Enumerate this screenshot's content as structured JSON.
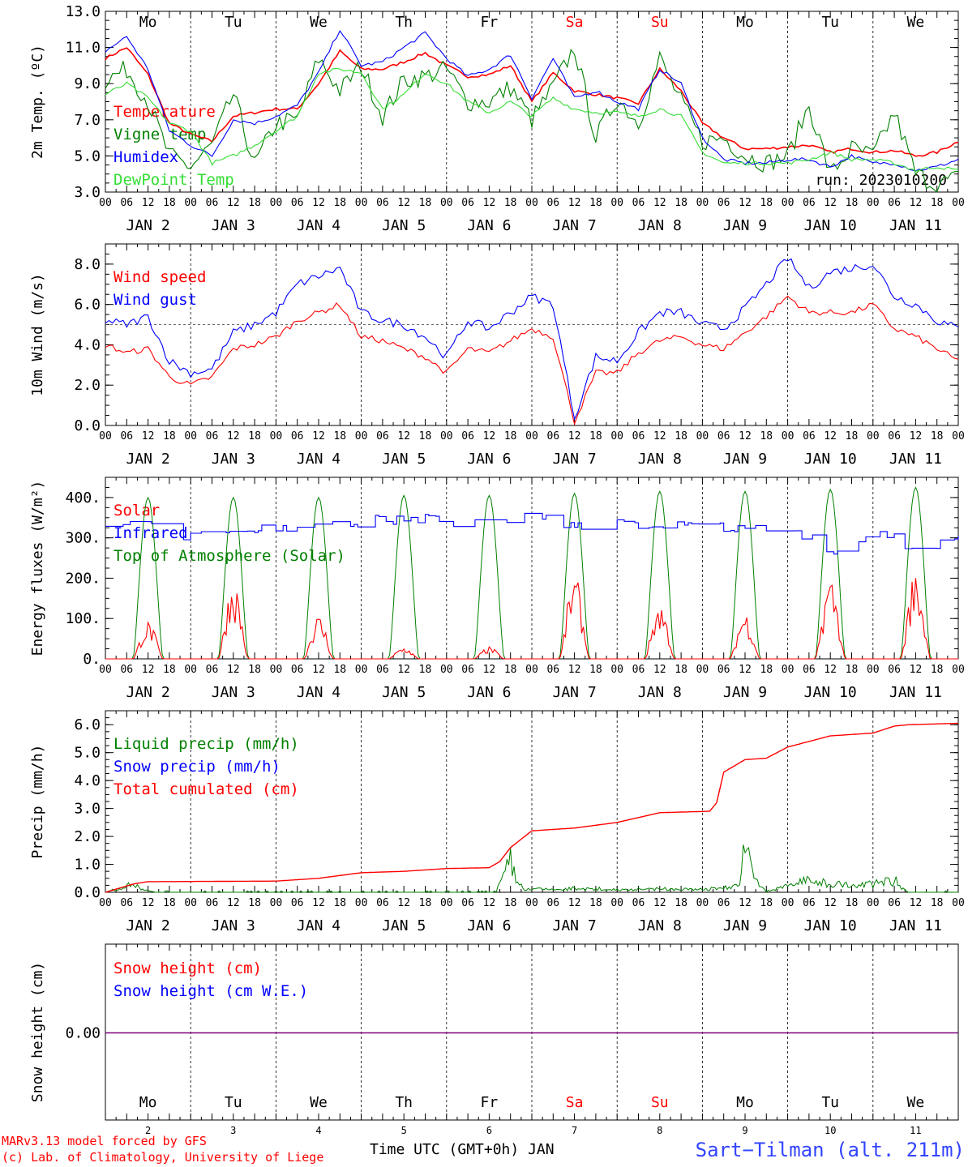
{
  "days": [
    {
      "dow": "Mo",
      "date": "JAN  2",
      "num": "2",
      "weekend": false
    },
    {
      "dow": "Tu",
      "date": "JAN  3",
      "num": "3",
      "weekend": false
    },
    {
      "dow": "We",
      "date": "JAN  4",
      "num": "4",
      "weekend": false
    },
    {
      "dow": "Th",
      "date": "JAN  5",
      "num": "5",
      "weekend": false
    },
    {
      "dow": "Fr",
      "date": "JAN  6",
      "num": "6",
      "weekend": false
    },
    {
      "dow": "Sa",
      "date": "JAN  7",
      "num": "7",
      "weekend": true
    },
    {
      "dow": "Su",
      "date": "JAN  8",
      "num": "8",
      "weekend": true
    },
    {
      "dow": "Mo",
      "date": "JAN  9",
      "num": "9",
      "weekend": false
    },
    {
      "dow": "Tu",
      "date": "JAN 10",
      "num": "10",
      "weekend": false
    },
    {
      "dow": "We",
      "date": "JAN 11",
      "num": "11",
      "weekend": false
    }
  ],
  "hour_ticks": [
    "00",
    "06",
    "12",
    "18"
  ],
  "hour_ticks_end": "00",
  "colors": {
    "red": "#ff0000",
    "green": "#008000",
    "blue": "#0000ff",
    "lightgreen": "#33dd33",
    "purple": "#800080"
  },
  "footer": {
    "model": "MARv3.13 model forced by GFS",
    "lab": "(c) Lab. of Climatology, University of Liege",
    "xlabel": "Time UTC (GMT+0h) JAN",
    "station": "Sart−Tilman (alt. 211m)"
  },
  "chart_data": [
    {
      "type": "line",
      "ylabel": "2m Temp. (ºC)",
      "ylim": [
        3.0,
        13.0
      ],
      "yticks": [
        "3.0",
        "5.0",
        "7.0",
        "9.0",
        "11.0",
        "13.0"
      ],
      "grid": false,
      "legend": "left",
      "annotation": "run: 2023010200",
      "x_hours": [
        0,
        6,
        12,
        18,
        24,
        30,
        36,
        42,
        48,
        54,
        60,
        66,
        72,
        78,
        84,
        90,
        96,
        102,
        108,
        114,
        120,
        126,
        132,
        138,
        144,
        150,
        156,
        162,
        168,
        174,
        180,
        186,
        192,
        198,
        204,
        210,
        216,
        222,
        228,
        234,
        240
      ],
      "series": [
        {
          "name": "Temperature",
          "color": "red",
          "values": [
            10.4,
            11.0,
            9.5,
            6.8,
            6.2,
            5.8,
            7.2,
            7.4,
            7.6,
            7.6,
            9.0,
            10.8,
            9.8,
            9.8,
            10.2,
            10.7,
            10.0,
            9.4,
            9.5,
            10.0,
            8.0,
            9.6,
            8.6,
            8.4,
            8.2,
            7.9,
            9.8,
            8.6,
            6.8,
            6.0,
            5.4,
            5.4,
            5.5,
            5.6,
            5.2,
            5.4,
            5.2,
            5.3,
            5.0,
            5.2,
            5.8
          ]
        },
        {
          "name": "Vigne temp",
          "color": "green",
          "values": [
            9.2,
            9.8,
            8.0,
            5.0,
            4.4,
            5.6,
            8.4,
            4.5,
            6.8,
            7.0,
            10.4,
            8.6,
            10.0,
            7.2,
            9.2,
            9.4,
            9.8,
            8.0,
            8.0,
            8.8,
            7.0,
            8.8,
            11.0,
            6.0,
            8.2,
            6.8,
            10.4,
            8.0,
            5.8,
            6.0,
            5.0,
            4.6,
            5.0,
            7.8,
            4.0,
            5.4,
            5.0,
            7.4,
            4.0,
            3.4,
            3.8
          ]
        },
        {
          "name": "Humidex",
          "color": "blue",
          "values": [
            10.8,
            11.6,
            9.8,
            6.4,
            5.6,
            5.0,
            7.0,
            6.8,
            7.2,
            7.8,
            9.6,
            12.0,
            10.0,
            10.2,
            11.0,
            11.8,
            10.4,
            9.4,
            9.8,
            10.6,
            8.2,
            10.4,
            8.2,
            8.6,
            8.0,
            7.6,
            9.8,
            9.0,
            6.0,
            4.8,
            4.6,
            4.6,
            4.8,
            4.8,
            4.4,
            5.0,
            4.6,
            4.6,
            4.2,
            4.4,
            4.8
          ]
        },
        {
          "name": "DewPoint Temp",
          "color": "lightgreen",
          "values": [
            8.4,
            9.0,
            8.2,
            6.8,
            6.4,
            4.6,
            5.0,
            5.6,
            6.4,
            7.2,
            9.6,
            9.8,
            9.6,
            7.6,
            8.4,
            9.6,
            9.0,
            8.0,
            7.4,
            8.0,
            7.2,
            8.2,
            7.6,
            7.4,
            7.4,
            7.2,
            7.6,
            7.2,
            5.2,
            4.6,
            4.6,
            4.6,
            4.6,
            4.8,
            5.2,
            4.8,
            4.8,
            4.6,
            4.2,
            4.4,
            4.2
          ]
        }
      ]
    },
    {
      "type": "line",
      "ylabel": "10m Wind (m/s)",
      "ylim": [
        0.0,
        9.0
      ],
      "yticks": [
        "0.0",
        "2.0",
        "4.0",
        "6.0",
        "8.0"
      ],
      "reference_line": 5.0,
      "legend": "left",
      "x_hours": [
        0,
        6,
        12,
        18,
        24,
        30,
        36,
        42,
        48,
        54,
        60,
        66,
        72,
        78,
        84,
        90,
        96,
        102,
        108,
        114,
        120,
        126,
        132,
        138,
        144,
        150,
        156,
        162,
        168,
        174,
        180,
        186,
        192,
        198,
        204,
        210,
        216,
        222,
        228,
        234,
        240
      ],
      "series": [
        {
          "name": "Wind speed",
          "color": "red",
          "values": [
            4.0,
            3.6,
            3.8,
            2.4,
            2.0,
            2.4,
            3.8,
            4.0,
            4.4,
            5.2,
            5.6,
            6.0,
            4.4,
            4.2,
            3.8,
            3.4,
            2.6,
            3.8,
            3.6,
            4.2,
            4.8,
            4.4,
            0.2,
            2.6,
            2.6,
            3.6,
            4.2,
            4.4,
            4.0,
            3.8,
            4.6,
            5.4,
            6.4,
            5.6,
            5.6,
            5.6,
            6.0,
            4.8,
            4.4,
            3.8,
            3.2
          ]
        },
        {
          "name": "Wind gust",
          "color": "blue",
          "values": [
            5.2,
            5.0,
            5.4,
            3.2,
            2.6,
            2.8,
            4.6,
            5.0,
            5.6,
            7.0,
            7.4,
            7.8,
            5.6,
            5.2,
            5.0,
            4.4,
            3.4,
            5.2,
            4.8,
            5.6,
            6.4,
            6.0,
            0.4,
            3.4,
            3.2,
            4.6,
            5.6,
            5.6,
            5.0,
            4.8,
            5.8,
            7.0,
            8.3,
            6.8,
            7.6,
            7.8,
            8.0,
            6.4,
            6.0,
            5.2,
            4.8
          ]
        }
      ]
    },
    {
      "type": "line",
      "ylabel": "Energy fluxes (W/m²)",
      "ylim": [
        0,
        450
      ],
      "yticks": [
        "0.",
        "100.",
        "200.",
        "300.",
        "400."
      ],
      "legend": "left",
      "series": [
        {
          "name": "Solar",
          "color": "red",
          "daily_peak_values": [
            95,
            200,
            110,
            30,
            30,
            210,
            145,
            120,
            210,
            220
          ]
        },
        {
          "name": "Infrared",
          "color": "blue",
          "x_hours": [
            0,
            12,
            24,
            36,
            48,
            60,
            72,
            84,
            96,
            108,
            120,
            132,
            144,
            156,
            168,
            180,
            192,
            204,
            216,
            228,
            240
          ],
          "values": [
            340,
            345,
            300,
            325,
            330,
            335,
            340,
            350,
            345,
            330,
            355,
            330,
            335,
            335,
            330,
            330,
            325,
            270,
            310,
            280,
            295
          ]
        },
        {
          "name": "Top of Atmosphere (Solar)",
          "color": "green",
          "daily_peak_values": [
            400,
            400,
            400,
            405,
            405,
            410,
            415,
            415,
            420,
            425
          ]
        }
      ]
    },
    {
      "type": "line",
      "ylabel": "Precip (mm/h)",
      "ylim": [
        0.0,
        6.5
      ],
      "yticks": [
        "0.0",
        "1.0",
        "2.0",
        "3.0",
        "4.0",
        "5.0",
        "6.0"
      ],
      "legend": "left",
      "series": [
        {
          "name": "Liquid precip (mm/h)",
          "color": "green",
          "x_hours": [
            0,
            8,
            10,
            14,
            24,
            110,
            114,
            116,
            118,
            168,
            178,
            180,
            183,
            186,
            196,
            210,
            222,
            226,
            230,
            240
          ],
          "values": [
            0,
            0.3,
            0.1,
            0,
            0,
            0,
            1.1,
            0.3,
            0.1,
            0.1,
            0.2,
            1.5,
            0.4,
            0,
            0.4,
            0.2,
            0.4,
            0,
            0,
            0
          ]
        },
        {
          "name": "Snow precip (mm/h)",
          "color": "blue",
          "values": []
        },
        {
          "name": "Total cumulated (cm)",
          "color": "red",
          "x_hours": [
            0,
            8,
            12,
            48,
            60,
            72,
            84,
            96,
            108,
            111,
            114,
            120,
            132,
            144,
            156,
            170,
            172,
            174,
            180,
            186,
            192,
            204,
            216,
            222,
            226,
            240
          ],
          "values": [
            0,
            0.3,
            0.38,
            0.4,
            0.5,
            0.7,
            0.75,
            0.85,
            0.88,
            1.1,
            1.6,
            2.2,
            2.3,
            2.5,
            2.85,
            2.9,
            3.2,
            4.3,
            4.75,
            4.8,
            5.2,
            5.6,
            5.7,
            5.95,
            6.0,
            6.05
          ]
        }
      ]
    },
    {
      "type": "line",
      "ylabel": "Snow height (cm)",
      "yticks": [
        "0.00"
      ],
      "legend": "left",
      "series": [
        {
          "name": "Snow height (cm)",
          "color": "red",
          "values": [
            0.0
          ]
        },
        {
          "name": "Snow height (cm W.E.)",
          "color": "blue",
          "values": [
            0.0
          ]
        }
      ]
    }
  ]
}
